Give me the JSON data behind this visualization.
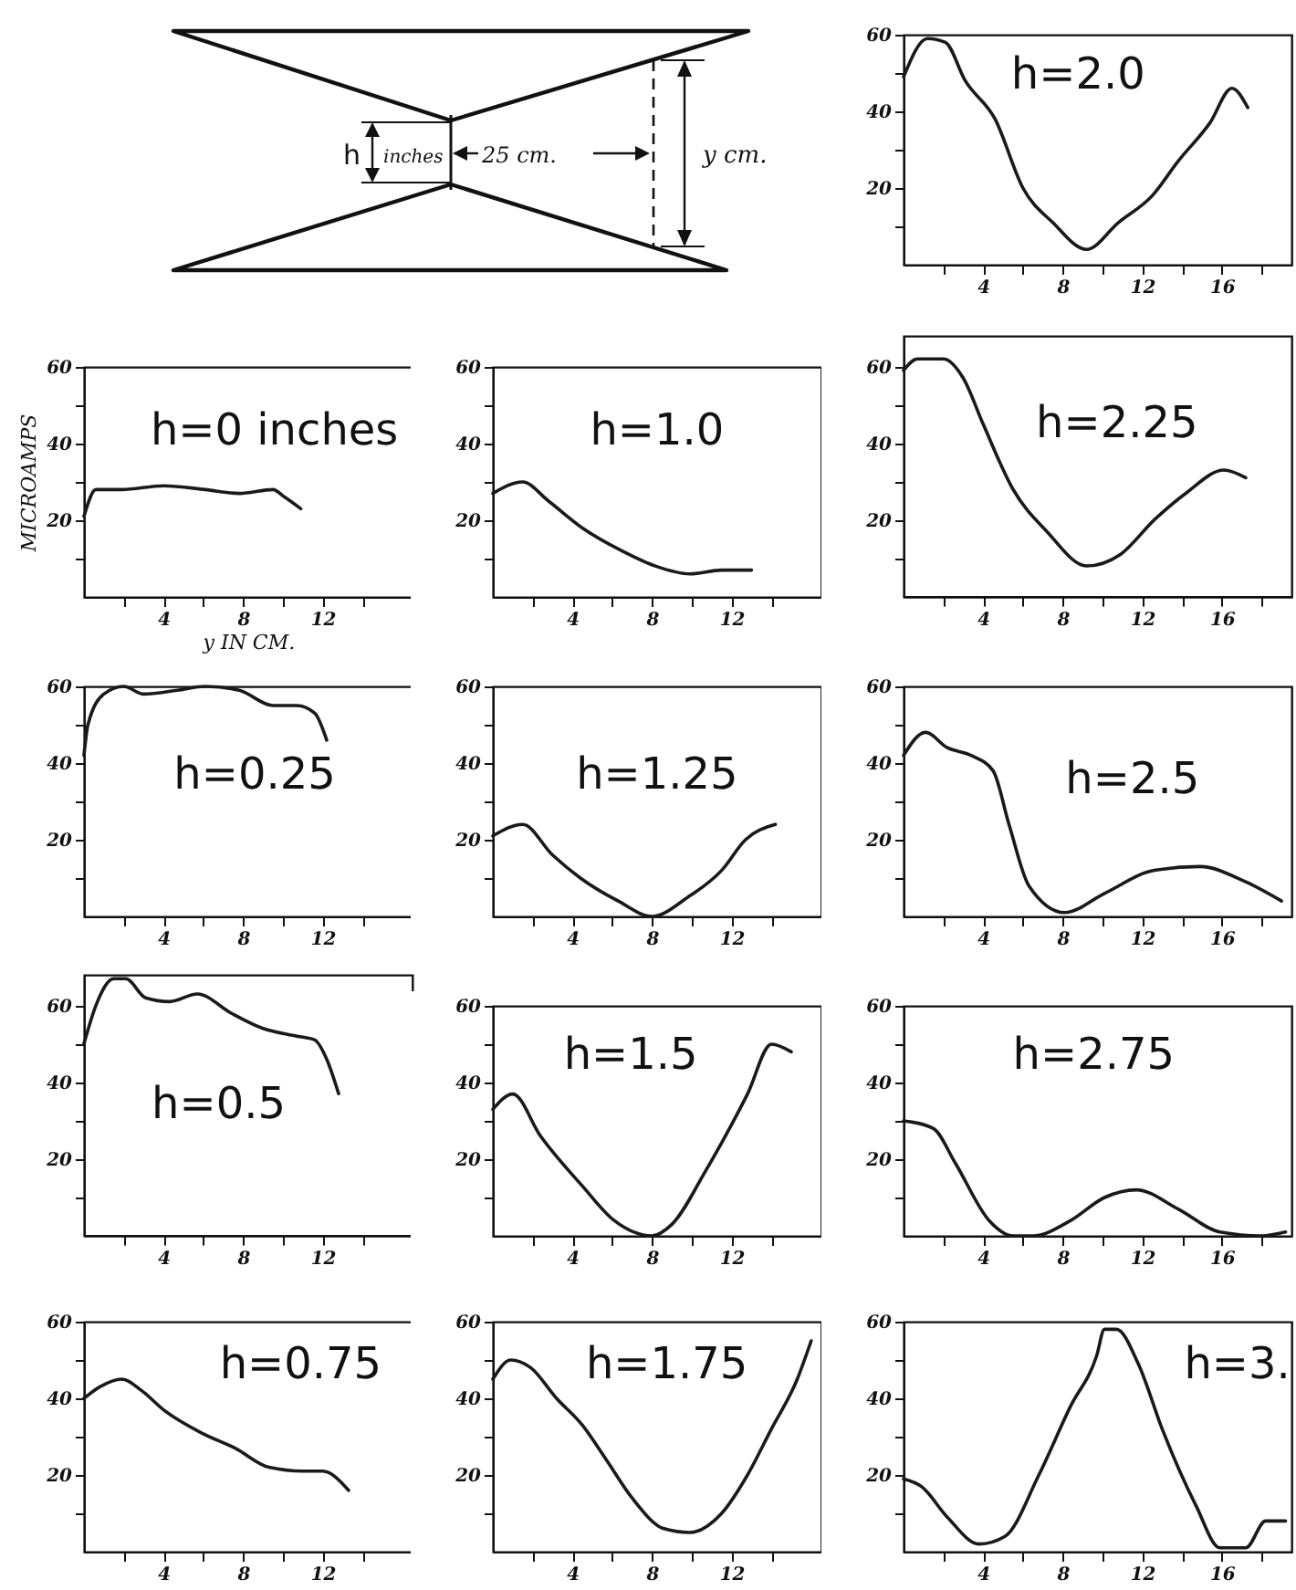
{
  "chart_data": [
    {
      "type": "other",
      "annotations": [
        "h",
        "inches",
        "25 cm.",
        "y cm."
      ]
    },
    {
      "type": "line",
      "title": "h=2.0",
      "xlim": [
        0,
        19.5
      ],
      "ylim": [
        0,
        60
      ],
      "xticks": [
        {
          "value": 2,
          "label": null
        },
        4,
        {
          "value": 6,
          "label": null
        },
        8,
        {
          "value": 10,
          "label": null
        },
        12,
        {
          "value": 14,
          "label": null
        },
        16,
        {
          "value": 18,
          "label": null
        }
      ],
      "yticks": [
        {
          "value": 10,
          "label": null
        },
        20,
        {
          "value": 30,
          "label": null
        },
        40,
        {
          "value": 50,
          "label": null
        },
        60
      ],
      "series": [
        {
          "color": "#1a1a1a",
          "x": [
            0,
            1.2,
            2.1,
            3.1,
            4.6,
            6,
            7.5,
            9.2,
            10.8,
            12.5,
            13.8,
            15.4,
            16.5,
            17.3
          ],
          "values": [
            49,
            59,
            58,
            48,
            38,
            20,
            11,
            4,
            11,
            18,
            27,
            37,
            46,
            41
          ]
        }
      ]
    },
    {
      "type": "line",
      "title": "h=0 inches",
      "xlabel": "y IN CM.",
      "ylabel": "MICROAMPS",
      "xlim": [
        0,
        16.5
      ],
      "ylim": [
        0,
        60
      ],
      "xticks": [
        {
          "value": 2,
          "label": null
        },
        4,
        {
          "value": 6,
          "label": null
        },
        8,
        {
          "value": 10,
          "label": null
        },
        12,
        {
          "value": 14,
          "label": null
        }
      ],
      "yticks": [
        {
          "value": 10,
          "label": null
        },
        20,
        {
          "value": 30,
          "label": null
        },
        40,
        {
          "value": 50,
          "label": null
        },
        60
      ],
      "series": [
        {
          "color": "#1a1a1a",
          "x": [
            0,
            0.6,
            1.9,
            4,
            6.1,
            7.8,
            9.5,
            10.1,
            10.9
          ],
          "values": [
            21,
            28,
            28,
            29,
            28,
            27,
            28,
            26,
            23
          ]
        }
      ]
    },
    {
      "type": "line",
      "title": "h=1.0",
      "xlim": [
        0,
        16.5
      ],
      "ylim": [
        0,
        60
      ],
      "xticks": [
        {
          "value": 2,
          "label": null
        },
        4,
        {
          "value": 6,
          "label": null
        },
        8,
        {
          "value": 10,
          "label": null
        },
        12,
        {
          "value": 14,
          "label": null
        }
      ],
      "yticks": [
        {
          "value": 10,
          "label": null
        },
        20,
        {
          "value": 30,
          "label": null
        },
        40,
        {
          "value": 50,
          "label": null
        },
        60
      ],
      "series": [
        {
          "color": "#1a1a1a",
          "x": [
            0,
            1.5,
            2.8,
            4.5,
            6.5,
            8.2,
            9.9,
            11.5,
            13
          ],
          "values": [
            27,
            30,
            25,
            18,
            12,
            8,
            6,
            7,
            7
          ]
        }
      ]
    },
    {
      "type": "line",
      "title": "h=2.25",
      "xlim": [
        0,
        19.5
      ],
      "ylim": [
        0,
        68
      ],
      "xticks": [
        {
          "value": 2,
          "label": null
        },
        4,
        {
          "value": 6,
          "label": null
        },
        8,
        {
          "value": 10,
          "label": null
        },
        12,
        {
          "value": 14,
          "label": null
        },
        16,
        {
          "value": 18,
          "label": null
        }
      ],
      "yticks": [
        {
          "value": 10,
          "label": null
        },
        20,
        {
          "value": 30,
          "label": null
        },
        40,
        {
          "value": 50,
          "label": null
        },
        60
      ],
      "series": [
        {
          "color": "#1a1a1a",
          "x": [
            0,
            0.7,
            2,
            3,
            4,
            5.5,
            7.2,
            9.2,
            10.9,
            12.6,
            14.2,
            16.1,
            17.2
          ],
          "values": [
            59,
            62,
            62,
            57,
            45,
            28,
            17,
            8,
            11,
            20,
            27,
            33,
            31
          ]
        }
      ]
    },
    {
      "type": "line",
      "title": "h=0.25",
      "xlim": [
        0,
        16.5
      ],
      "ylim": [
        0,
        60
      ],
      "xticks": [
        {
          "value": 2,
          "label": null
        },
        4,
        {
          "value": 6,
          "label": null
        },
        8,
        {
          "value": 10,
          "label": null
        },
        12,
        {
          "value": 14,
          "label": null
        }
      ],
      "yticks": [
        {
          "value": 10,
          "label": null
        },
        20,
        {
          "value": 30,
          "label": null
        },
        40,
        {
          "value": 50,
          "label": null
        },
        60
      ],
      "series": [
        {
          "color": "#1a1a1a",
          "x": [
            0,
            0.2,
            1,
            2,
            3,
            4.7,
            6.1,
            7.8,
            9.5,
            10.7,
            11.6,
            12.2
          ],
          "values": [
            42,
            50,
            58,
            60,
            58,
            59,
            60,
            59,
            55,
            55,
            53,
            46
          ]
        }
      ]
    },
    {
      "type": "line",
      "title": "h=1.25",
      "xlim": [
        0,
        16.5
      ],
      "ylim": [
        0,
        60
      ],
      "xticks": [
        {
          "value": 2,
          "label": null
        },
        4,
        {
          "value": 6,
          "label": null
        },
        8,
        {
          "value": 10,
          "label": null
        },
        12,
        {
          "value": 14,
          "label": null
        }
      ],
      "yticks": [
        {
          "value": 10,
          "label": null
        },
        20,
        {
          "value": 30,
          "label": null
        },
        40,
        {
          "value": 50,
          "label": null
        },
        60
      ],
      "series": [
        {
          "color": "#1a1a1a",
          "x": [
            0,
            1.5,
            3,
            4.4,
            6.3,
            8,
            9.8,
            11.5,
            12.7,
            14.2
          ],
          "values": [
            21,
            24,
            16,
            10,
            4,
            0,
            5,
            12,
            20,
            24
          ]
        }
      ]
    },
    {
      "type": "line",
      "title": "h=2.5",
      "xlim": [
        0,
        19.5
      ],
      "ylim": [
        0,
        60
      ],
      "xticks": [
        {
          "value": 2,
          "label": null
        },
        4,
        {
          "value": 6,
          "label": null
        },
        8,
        {
          "value": 10,
          "label": null
        },
        12,
        {
          "value": 14,
          "label": null
        },
        16,
        {
          "value": 18,
          "label": null
        }
      ],
      "yticks": [
        {
          "value": 10,
          "label": null
        },
        20,
        {
          "value": 30,
          "label": null
        },
        40,
        {
          "value": 50,
          "label": null
        },
        60
      ],
      "series": [
        {
          "color": "#1a1a1a",
          "x": [
            0,
            1.1,
            2.2,
            3.4,
            4.5,
            5.3,
            6.3,
            8.1,
            10.1,
            12.6,
            14.9,
            17.2,
            19
          ],
          "values": [
            42,
            48,
            44,
            42,
            38,
            24,
            8,
            1,
            6,
            12,
            13,
            9,
            4
          ]
        }
      ]
    },
    {
      "type": "line",
      "title": "h=0.5",
      "xlim": [
        0,
        16.5
      ],
      "ylim": [
        0,
        68
      ],
      "xticks": [
        {
          "value": 2,
          "label": null
        },
        4,
        {
          "value": 6,
          "label": null
        },
        8,
        {
          "value": 10,
          "label": null
        },
        12,
        {
          "value": 14,
          "label": null
        }
      ],
      "yticks": [
        {
          "value": 10,
          "label": null
        },
        20,
        {
          "value": 30,
          "label": null
        },
        40,
        {
          "value": 50,
          "label": null
        },
        60
      ],
      "series": [
        {
          "color": "#1a1a1a",
          "x": [
            0,
            0.6,
            1.5,
            2.1,
            3.1,
            4.3,
            5.7,
            7.4,
            9,
            10.7,
            11.6,
            12.2,
            12.8
          ],
          "values": [
            50,
            60,
            67,
            67,
            62,
            61,
            63,
            58,
            54,
            52,
            51,
            46,
            37
          ]
        }
      ]
    },
    {
      "type": "line",
      "title": "h=1.5",
      "xlim": [
        0,
        16.5
      ],
      "ylim": [
        0,
        60
      ],
      "xticks": [
        {
          "value": 2,
          "label": null
        },
        4,
        {
          "value": 6,
          "label": null
        },
        8,
        {
          "value": 10,
          "label": null
        },
        12,
        {
          "value": 14,
          "label": null
        }
      ],
      "yticks": [
        {
          "value": 10,
          "label": null
        },
        20,
        {
          "value": 30,
          "label": null
        },
        40,
        {
          "value": 50,
          "label": null
        },
        60
      ],
      "series": [
        {
          "color": "#1a1a1a",
          "x": [
            0,
            1,
            2.4,
            4.5,
            6.1,
            8,
            9,
            10.7,
            12,
            12.8,
            14,
            15
          ],
          "values": [
            33,
            37,
            26,
            13,
            4,
            0,
            3,
            17,
            29,
            37,
            50,
            48
          ]
        }
      ]
    },
    {
      "type": "line",
      "title": "h=2.75",
      "xlim": [
        0,
        19.5
      ],
      "ylim": [
        0,
        60
      ],
      "xticks": [
        {
          "value": 2,
          "label": null
        },
        4,
        {
          "value": 6,
          "label": null
        },
        8,
        {
          "value": 10,
          "label": null
        },
        12,
        {
          "value": 14,
          "label": null
        },
        16,
        {
          "value": 18,
          "label": null
        }
      ],
      "yticks": [
        {
          "value": 10,
          "label": null
        },
        20,
        {
          "value": 30,
          "label": null
        },
        40,
        {
          "value": 50,
          "label": null
        },
        60
      ],
      "series": [
        {
          "color": "#1a1a1a",
          "x": [
            0,
            1.5,
            2.6,
            4.3,
            5.5,
            6.5,
            8.4,
            10.1,
            11.7,
            13.8,
            15.9,
            18,
            19.2
          ],
          "values": [
            30,
            28,
            19,
            4,
            0,
            0,
            4,
            10,
            12,
            7,
            1,
            0,
            1
          ]
        }
      ]
    },
    {
      "type": "line",
      "title": "h=0.75",
      "xlim": [
        0,
        16.5
      ],
      "ylim": [
        0,
        60
      ],
      "xticks": [
        {
          "value": 2,
          "label": null
        },
        4,
        {
          "value": 6,
          "label": null
        },
        8,
        {
          "value": 10,
          "label": null
        },
        12,
        {
          "value": 14,
          "label": null
        }
      ],
      "yticks": [
        {
          "value": 10,
          "label": null
        },
        20,
        {
          "value": 30,
          "label": null
        },
        40,
        {
          "value": 50,
          "label": null
        },
        60
      ],
      "series": [
        {
          "color": "#1a1a1a",
          "x": [
            0,
            0.8,
            1.9,
            2.9,
            4,
            5.9,
            7.6,
            9.3,
            11,
            12,
            13.3
          ],
          "values": [
            40,
            43,
            45,
            42,
            37,
            31,
            27,
            22,
            21,
            21,
            16
          ]
        }
      ]
    },
    {
      "type": "line",
      "title": "h=1.75",
      "xlim": [
        0,
        16.5
      ],
      "ylim": [
        0,
        60
      ],
      "xticks": [
        {
          "value": 2,
          "label": null
        },
        4,
        {
          "value": 6,
          "label": null
        },
        8,
        {
          "value": 10,
          "label": null
        },
        12,
        {
          "value": 14,
          "label": null
        }
      ],
      "yticks": [
        {
          "value": 10,
          "label": null
        },
        20,
        {
          "value": 30,
          "label": null
        },
        40,
        {
          "value": 50,
          "label": null
        },
        60
      ],
      "series": [
        {
          "color": "#1a1a1a",
          "x": [
            0,
            0.9,
            1.9,
            3.2,
            4.5,
            5.7,
            7,
            8.6,
            9.9,
            11.5,
            12.8,
            14,
            15.3,
            16
          ],
          "values": [
            45,
            50,
            48,
            40,
            33,
            24,
            14,
            6,
            5,
            10,
            20,
            32,
            45,
            55
          ]
        }
      ]
    },
    {
      "type": "line",
      "title": "h=3.",
      "xlim": [
        0,
        19.5
      ],
      "ylim": [
        0,
        60
      ],
      "xticks": [
        {
          "value": 2,
          "label": null
        },
        4,
        {
          "value": 6,
          "label": null
        },
        8,
        {
          "value": 10,
          "label": null
        },
        12,
        {
          "value": 14,
          "label": null
        },
        16,
        {
          "value": 18,
          "label": null
        }
      ],
      "yticks": [
        {
          "value": 10,
          "label": null
        },
        20,
        {
          "value": 30,
          "label": null
        },
        40,
        {
          "value": 50,
          "label": null
        },
        60
      ],
      "series": [
        {
          "color": "#1a1a1a",
          "x": [
            0,
            0.9,
            2.2,
            3.8,
            5.1,
            6.8,
            8.4,
            9.7,
            10.1,
            10.7,
            11.8,
            13,
            14.7,
            15.9,
            17.2,
            18.2,
            19.2
          ],
          "values": [
            19,
            17,
            9,
            2,
            4,
            20,
            38,
            51,
            58,
            58,
            49,
            32,
            12,
            1,
            1,
            8,
            8
          ]
        }
      ]
    }
  ]
}
